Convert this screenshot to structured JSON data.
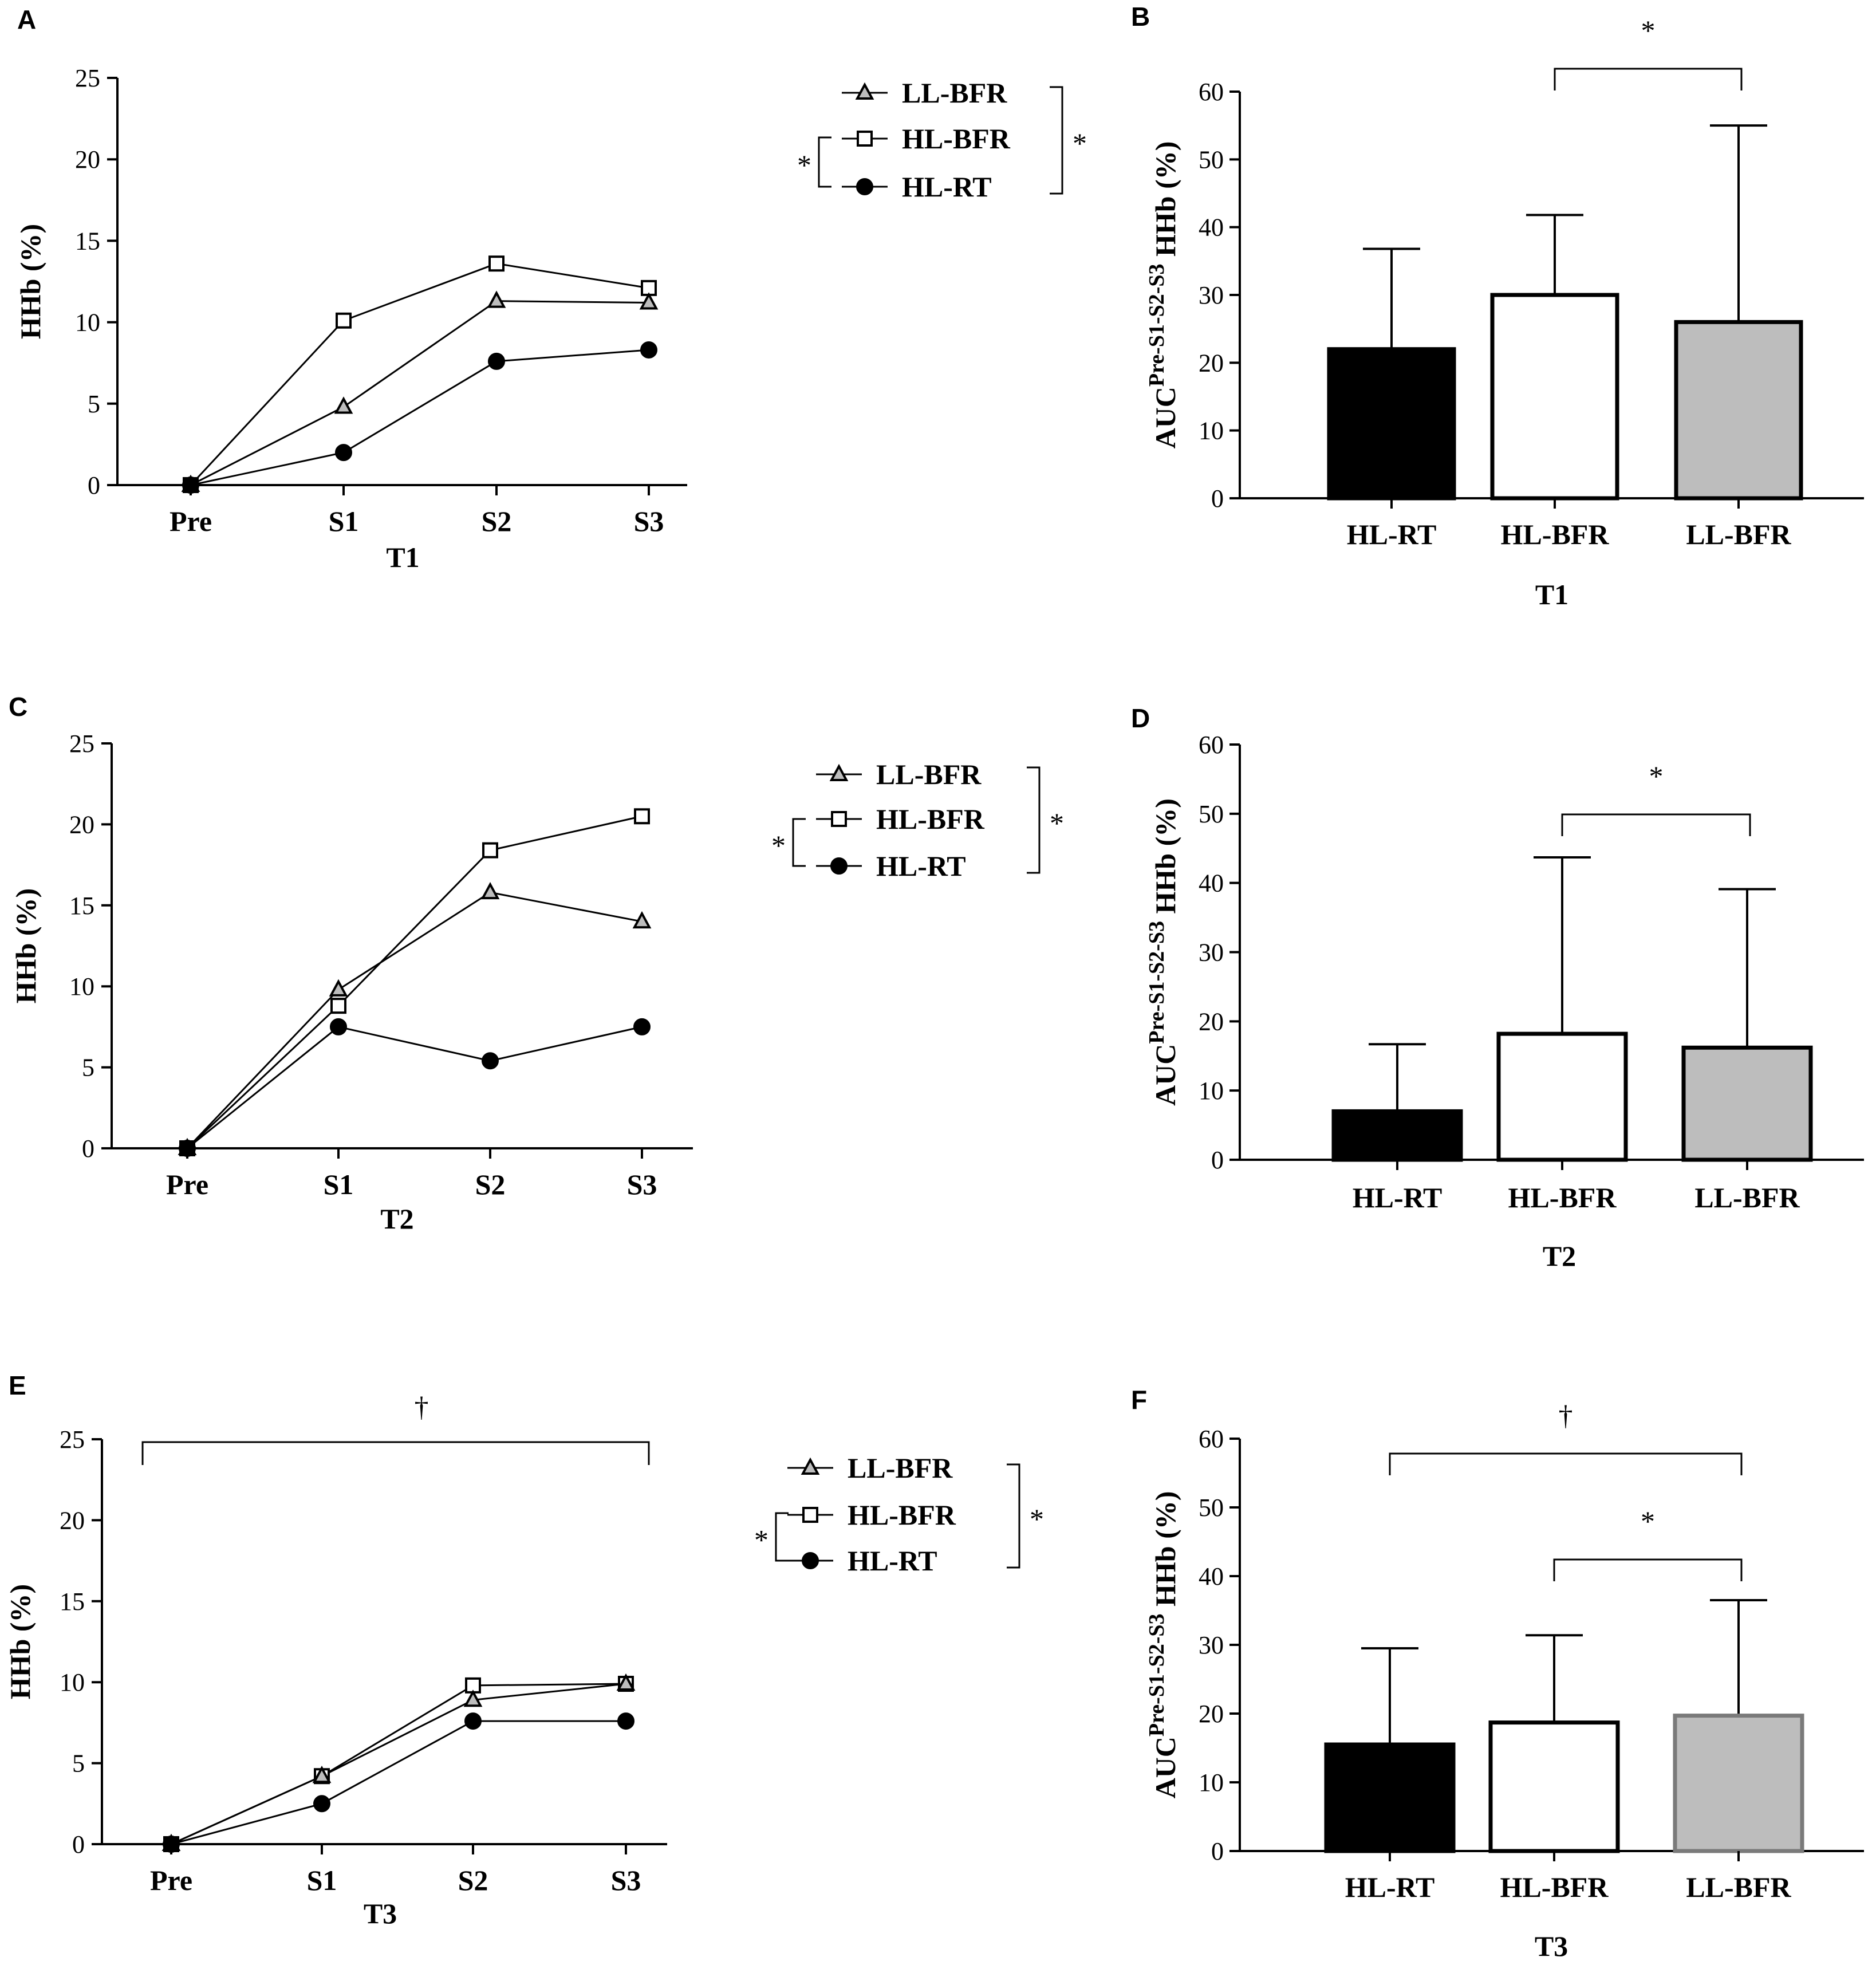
{
  "colors": {
    "ink": "#000000",
    "ll_bfr_fill": "#bdbdbd",
    "hl_bfr_fill": "#ffffff",
    "hl_rt_fill": "#000000",
    "ll_bfr_edge_f": "#7a7a7a"
  },
  "chart_data": [
    {
      "panel": "A",
      "type": "line",
      "xlabel": "T1",
      "ylabel": "HHb (%)",
      "categories": [
        "Pre",
        "S1",
        "S2",
        "S3"
      ],
      "ylim": [
        0,
        25
      ],
      "yticks": [
        0,
        5,
        10,
        15,
        20,
        25
      ],
      "series": [
        {
          "name": "HL-BFR",
          "marker": "square",
          "values": [
            0,
            10.1,
            13.6,
            12.1
          ]
        },
        {
          "name": "LL-BFR",
          "marker": "triangle",
          "values": [
            0,
            4.8,
            11.3,
            11.2
          ]
        },
        {
          "name": "HL-RT",
          "marker": "circle",
          "values": [
            0,
            2.0,
            7.6,
            8.3
          ]
        }
      ],
      "legend": {
        "labels": [
          "LL-BFR",
          "HL-BFR",
          "HL-RT"
        ],
        "left_mark": "*",
        "right_mark": "*"
      },
      "top_bracket": null
    },
    {
      "panel": "B",
      "type": "bar",
      "xlabel": "T1",
      "ylabel_main": "AUC",
      "ylabel_sup": "Pre-S1-S2-S3",
      "ylabel_rest": " HHb  (%)",
      "categories": [
        "HL-RT",
        "HL-BFR",
        "LL-BFR"
      ],
      "values": [
        22,
        30,
        26
      ],
      "errors": [
        14.8,
        11.8,
        29.0
      ],
      "ylim": [
        0,
        60
      ],
      "yticks": [
        0,
        10,
        20,
        30,
        40,
        50,
        60
      ],
      "brackets": [
        {
          "from": 1,
          "to": 2,
          "mark": "*"
        }
      ]
    },
    {
      "panel": "C",
      "type": "line",
      "xlabel": "T2",
      "ylabel": "HHb (%)",
      "categories": [
        "Pre",
        "S1",
        "S2",
        "S3"
      ],
      "ylim": [
        0,
        25
      ],
      "yticks": [
        0,
        5,
        10,
        15,
        20,
        25
      ],
      "series": [
        {
          "name": "HL-BFR",
          "marker": "square",
          "values": [
            0,
            8.8,
            18.4,
            20.5
          ]
        },
        {
          "name": "LL-BFR",
          "marker": "triangle",
          "values": [
            0,
            9.8,
            15.8,
            14.0
          ]
        },
        {
          "name": "HL-RT",
          "marker": "circle",
          "values": [
            0,
            7.5,
            5.4,
            7.5
          ]
        }
      ],
      "legend": {
        "labels": [
          "LL-BFR",
          "HL-BFR",
          "HL-RT"
        ],
        "left_mark": "*",
        "right_mark": "*"
      },
      "top_bracket": null
    },
    {
      "panel": "D",
      "type": "bar",
      "xlabel": "T2",
      "ylabel_main": "AUC",
      "ylabel_sup": "Pre-S1-S2-S3",
      "ylabel_rest": " HHb  (%)",
      "categories": [
        "HL-RT",
        "HL-BFR",
        "LL-BFR"
      ],
      "values": [
        7,
        18.2,
        16.2
      ],
      "errors": [
        9.7,
        25.5,
        22.9
      ],
      "ylim": [
        0,
        60
      ],
      "yticks": [
        0,
        10,
        20,
        30,
        40,
        50,
        60
      ],
      "brackets": [
        {
          "from": 1,
          "to": 2,
          "mark": "*"
        }
      ]
    },
    {
      "panel": "E",
      "type": "line",
      "xlabel": "T3",
      "ylabel": "HHb (%)",
      "categories": [
        "Pre",
        "S1",
        "S2",
        "S3"
      ],
      "ylim": [
        0,
        25
      ],
      "yticks": [
        0,
        5,
        10,
        15,
        20,
        25
      ],
      "series": [
        {
          "name": "HL-BFR",
          "marker": "square",
          "values": [
            0,
            4.2,
            9.8,
            9.9
          ]
        },
        {
          "name": "LL-BFR",
          "marker": "triangle",
          "values": [
            0,
            4.2,
            8.9,
            9.9
          ]
        },
        {
          "name": "HL-RT",
          "marker": "circle",
          "values": [
            0,
            2.5,
            7.6,
            7.6
          ]
        }
      ],
      "legend": {
        "labels": [
          "LL-BFR",
          "HL-BFR",
          "HL-RT"
        ],
        "left_mark": "*",
        "right_mark": "*"
      },
      "top_bracket": {
        "from": 0,
        "to": 3,
        "mark": "†"
      }
    },
    {
      "panel": "F",
      "type": "bar",
      "xlabel": "T3",
      "ylabel_main": "AUC",
      "ylabel_sup": "Pre-S1-S2-S3",
      "ylabel_rest": " HHb (%)",
      "categories": [
        "HL-RT",
        "HL-BFR",
        "LL-BFR"
      ],
      "values": [
        15.5,
        18.7,
        19.7
      ],
      "errors": [
        14.0,
        12.7,
        16.8
      ],
      "ylim": [
        0,
        60
      ],
      "yticks": [
        0,
        10,
        20,
        30,
        40,
        50,
        60
      ],
      "brackets": [
        {
          "from": 0,
          "to": 2,
          "mark": "†"
        },
        {
          "from": 1,
          "to": 2,
          "mark": "*"
        }
      ]
    }
  ]
}
